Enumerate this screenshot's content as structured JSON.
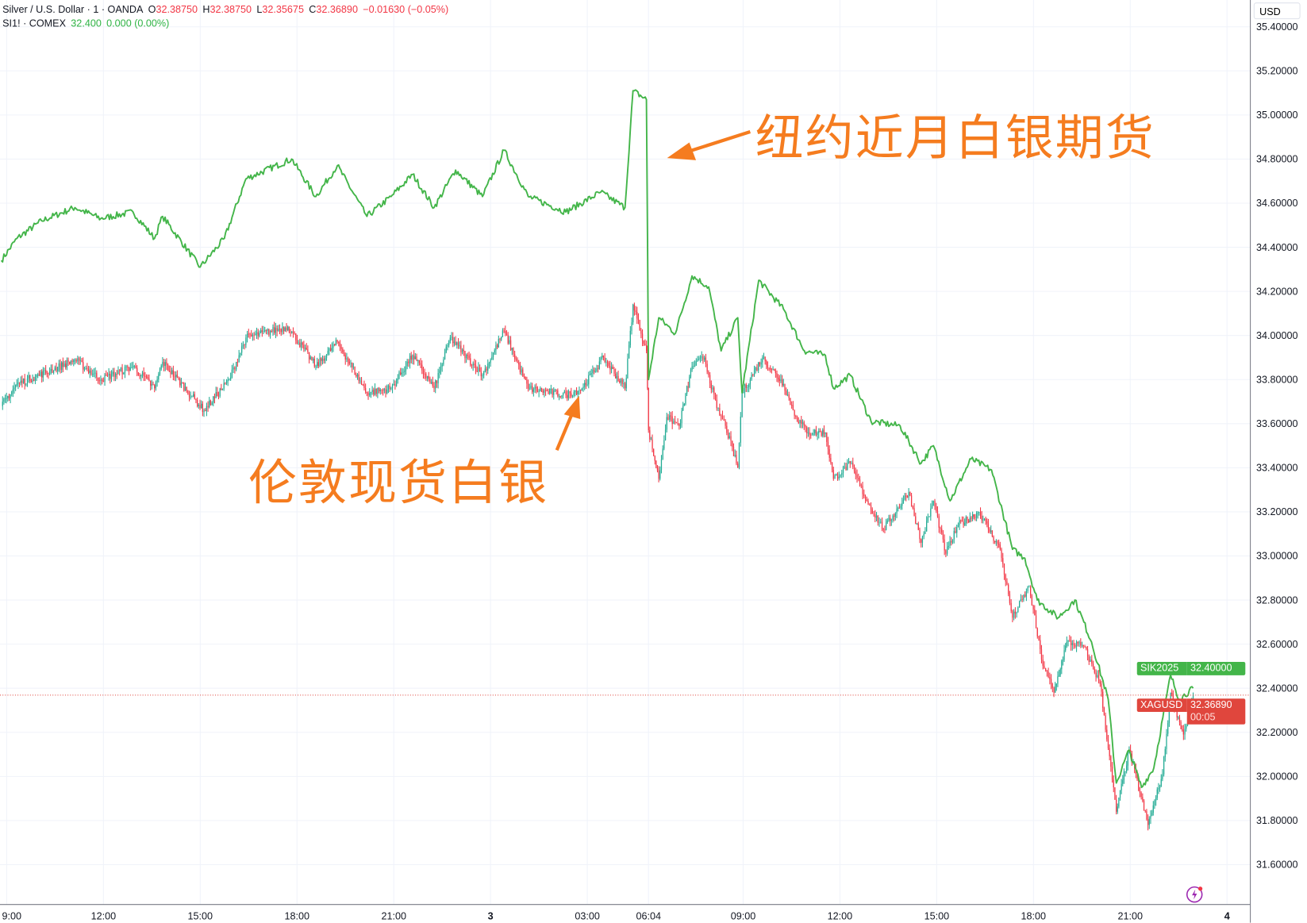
{
  "legend": {
    "main": {
      "title": "Silver / U.S. Dollar · 1 · OANDA",
      "o_label": "O",
      "o": "32.38750",
      "h_label": "H",
      "h": "32.38750",
      "l_label": "L",
      "l": "32.35675",
      "c_label": "C",
      "c": "32.36890",
      "change": "−0.01630 (−0.05%)"
    },
    "compare": {
      "title": "SI1! · COMEX",
      "last": "32.400",
      "change": "0.000 (0.00%)"
    }
  },
  "currency": "USD",
  "annotations": {
    "futures": "纽约近月白银期货",
    "spot": "伦敦现货白银"
  },
  "price_tags": {
    "futures": {
      "symbol": "SIK2025",
      "price": "32.40000",
      "color": "#43b549"
    },
    "spot": {
      "symbol": "XAGUSD",
      "price": "32.36890",
      "countdown": "00:05",
      "color": "#e0463d"
    }
  },
  "colors": {
    "futures_line": "#43b549",
    "candle_up": "#22ab94",
    "candle_down": "#f23645",
    "annotation": "#f57c1f"
  },
  "chart_data": {
    "type": "line+candlestick",
    "y_axis": {
      "side": "right",
      "range": [
        31.45,
        35.42
      ],
      "ticks": [
        "35.40000",
        "35.20000",
        "35.00000",
        "34.80000",
        "34.60000",
        "34.40000",
        "34.20000",
        "34.00000",
        "33.80000",
        "33.60000",
        "33.40000",
        "33.20000",
        "33.00000",
        "32.80000",
        "32.60000",
        "32.40000",
        "32.20000",
        "32.00000",
        "31.80000",
        "31.60000"
      ]
    },
    "x_axis": {
      "ticks": [
        {
          "label": "9:00",
          "t": "2 09:00"
        },
        {
          "label": "12:00",
          "t": "2 12:00"
        },
        {
          "label": "15:00",
          "t": "2 15:00"
        },
        {
          "label": "18:00",
          "t": "2 18:00"
        },
        {
          "label": "21:00",
          "t": "2 21:00"
        },
        {
          "label": "3",
          "t": "3 00:00"
        },
        {
          "label": "03:00",
          "t": "3 03:00"
        },
        {
          "label": "06:04",
          "t": "3 06:04"
        },
        {
          "label": "09:00",
          "t": "3 09:00"
        },
        {
          "label": "12:00",
          "t": "3 12:00"
        },
        {
          "label": "15:00",
          "t": "3 15:00"
        },
        {
          "label": "18:00",
          "t": "3 18:00"
        },
        {
          "label": "21:00",
          "t": "3 21:00"
        },
        {
          "label": "4",
          "t": "4 00:00"
        }
      ]
    },
    "grid": true,
    "series": [
      {
        "name": "SI1! · COMEX",
        "style": "line",
        "points": [
          [
            "2 08:50",
            34.34
          ],
          [
            "2 09:19",
            34.44
          ],
          [
            "2 10:05",
            34.52
          ],
          [
            "2 11:07",
            34.58
          ],
          [
            "2 11:55",
            34.53
          ],
          [
            "2 12:55",
            34.56
          ],
          [
            "2 13:35",
            34.44
          ],
          [
            "2 13:50",
            34.54
          ],
          [
            "2 15:00",
            34.31
          ],
          [
            "2 15:45",
            34.44
          ],
          [
            "2 16:25",
            34.71
          ],
          [
            "2 17:50",
            34.8
          ],
          [
            "2 18:35",
            34.63
          ],
          [
            "2 19:15",
            34.77
          ],
          [
            "2 20:10",
            34.54
          ],
          [
            "2 20:55",
            34.63
          ],
          [
            "2 21:35",
            34.73
          ],
          [
            "2 22:15",
            34.58
          ],
          [
            "2 22:55",
            34.75
          ],
          [
            "2 23:45",
            34.63
          ],
          [
            "3 00:25",
            34.84
          ],
          [
            "3 01:10",
            34.63
          ],
          [
            "3 02:20",
            34.56
          ],
          [
            "3 03:25",
            34.65
          ],
          [
            "3 04:10",
            34.58
          ],
          [
            "3 04:25",
            35.11
          ],
          [
            "3 04:50",
            35.07
          ],
          [
            "3 06:04",
            33.8
          ],
          [
            "3 06:23",
            34.08
          ],
          [
            "3 06:54",
            34.01
          ],
          [
            "3 07:25",
            34.27
          ],
          [
            "3 07:56",
            34.22
          ],
          [
            "3 08:19",
            33.93
          ],
          [
            "3 08:50",
            34.08
          ],
          [
            "3 08:58",
            33.74
          ],
          [
            "3 09:29",
            34.25
          ],
          [
            "3 10:15",
            34.12
          ],
          [
            "3 10:54",
            33.93
          ],
          [
            "3 11:33",
            33.91
          ],
          [
            "3 11:48",
            33.76
          ],
          [
            "3 12:19",
            33.82
          ],
          [
            "3 12:58",
            33.61
          ],
          [
            "3 13:52",
            33.59
          ],
          [
            "3 14:31",
            33.42
          ],
          [
            "3 14:54",
            33.5
          ],
          [
            "3 15:25",
            33.25
          ],
          [
            "3 16:04",
            33.44
          ],
          [
            "3 16:42",
            33.39
          ],
          [
            "3 17:21",
            33.03
          ],
          [
            "3 17:44",
            32.99
          ],
          [
            "3 18:07",
            32.8
          ],
          [
            "3 18:46",
            32.72
          ],
          [
            "3 19:17",
            32.8
          ],
          [
            "3 19:48",
            32.61
          ],
          [
            "3 20:19",
            32.35
          ],
          [
            "3 20:34",
            31.97
          ],
          [
            "3 20:58",
            32.12
          ],
          [
            "3 21:21",
            31.95
          ],
          [
            "3 21:44",
            32.04
          ],
          [
            "3 22:15",
            32.46
          ],
          [
            "3 22:31",
            32.35
          ],
          [
            "3 22:57",
            32.4
          ]
        ]
      },
      {
        "name": "Silver / U.S. Dollar · 1 · OANDA",
        "style": "candlestick",
        "points": [
          [
            "2 08:50",
            33.68
          ],
          [
            "2 09:19",
            33.78
          ],
          [
            "2 10:20",
            33.84
          ],
          [
            "2 11:07",
            33.89
          ],
          [
            "2 11:55",
            33.8
          ],
          [
            "2 12:55",
            33.86
          ],
          [
            "2 13:35",
            33.76
          ],
          [
            "2 13:50",
            33.88
          ],
          [
            "2 15:07",
            33.66
          ],
          [
            "2 15:54",
            33.8
          ],
          [
            "2 16:25",
            33.99
          ],
          [
            "2 17:43",
            34.04
          ],
          [
            "2 18:35",
            33.86
          ],
          [
            "2 19:15",
            33.97
          ],
          [
            "2 20:10",
            33.74
          ],
          [
            "2 20:55",
            33.76
          ],
          [
            "2 21:35",
            33.91
          ],
          [
            "2 22:15",
            33.76
          ],
          [
            "2 22:45",
            33.99
          ],
          [
            "2 23:45",
            33.82
          ],
          [
            "3 00:25",
            34.02
          ],
          [
            "3 01:10",
            33.76
          ],
          [
            "3 02:20",
            33.73
          ],
          [
            "3 02:50",
            33.76
          ],
          [
            "3 03:30",
            33.9
          ],
          [
            "3 04:10",
            33.76
          ],
          [
            "3 04:25",
            34.14
          ],
          [
            "3 04:50",
            33.93
          ],
          [
            "3 06:04",
            33.57
          ],
          [
            "3 06:23",
            33.35
          ],
          [
            "3 06:38",
            33.63
          ],
          [
            "3 07:01",
            33.59
          ],
          [
            "3 07:25",
            33.86
          ],
          [
            "3 07:48",
            33.9
          ],
          [
            "3 08:11",
            33.67
          ],
          [
            "3 08:27",
            33.59
          ],
          [
            "3 08:50",
            33.4
          ],
          [
            "3 08:58",
            33.74
          ],
          [
            "3 09:36",
            33.9
          ],
          [
            "3 10:15",
            33.78
          ],
          [
            "3 10:38",
            33.63
          ],
          [
            "3 11:01",
            33.56
          ],
          [
            "3 11:33",
            33.56
          ],
          [
            "3 11:48",
            33.35
          ],
          [
            "3 12:19",
            33.42
          ],
          [
            "3 12:50",
            33.25
          ],
          [
            "3 13:21",
            33.12
          ],
          [
            "3 14:08",
            33.29
          ],
          [
            "3 14:31",
            33.06
          ],
          [
            "3 14:54",
            33.25
          ],
          [
            "3 15:17",
            33.01
          ],
          [
            "3 15:40",
            33.14
          ],
          [
            "3 16:19",
            33.2
          ],
          [
            "3 16:58",
            33.03
          ],
          [
            "3 17:21",
            32.72
          ],
          [
            "3 17:52",
            32.86
          ],
          [
            "3 18:15",
            32.53
          ],
          [
            "3 18:38",
            32.38
          ],
          [
            "3 19:02",
            32.61
          ],
          [
            "3 19:33",
            32.59
          ],
          [
            "3 20:04",
            32.42
          ],
          [
            "3 20:34",
            31.84
          ],
          [
            "3 20:58",
            32.12
          ],
          [
            "3 21:33",
            31.78
          ],
          [
            "3 22:00",
            32.01
          ],
          [
            "3 22:15",
            32.38
          ],
          [
            "3 22:39",
            32.19
          ],
          [
            "3 22:57",
            32.37
          ]
        ]
      }
    ],
    "last_price_line": 32.3689
  }
}
